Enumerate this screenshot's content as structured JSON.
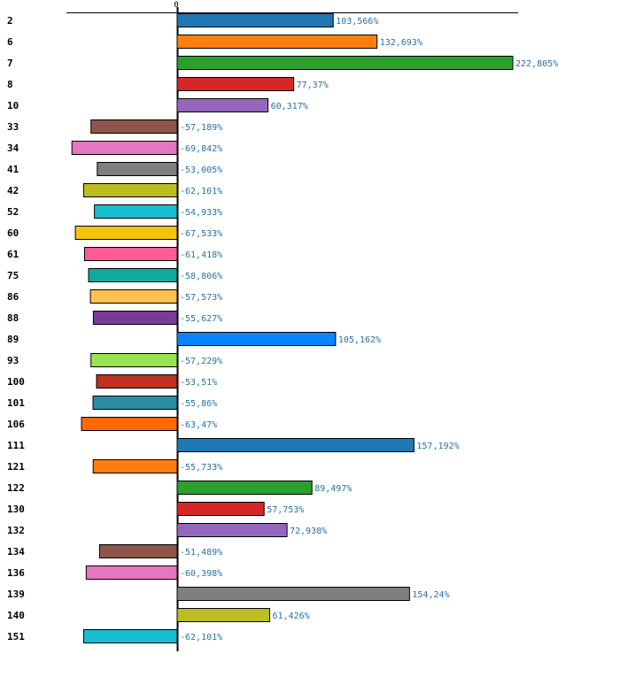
{
  "chart_data": {
    "type": "bar",
    "orientation": "horizontal",
    "x_tick_labels": [
      "0"
    ],
    "categories": [
      "2",
      "6",
      "7",
      "8",
      "10",
      "33",
      "34",
      "41",
      "42",
      "52",
      "60",
      "61",
      "75",
      "86",
      "88",
      "89",
      "93",
      "100",
      "101",
      "106",
      "111",
      "121",
      "122",
      "130",
      "132",
      "134",
      "136",
      "139",
      "140",
      "151"
    ],
    "values": [
      103.566,
      132.693,
      222.805,
      77.37,
      60.317,
      -57.189,
      -69.842,
      -53.005,
      -62.101,
      -54.933,
      -67.533,
      -61.418,
      -58.806,
      -57.573,
      -55.627,
      105.162,
      -57.229,
      -53.51,
      -55.86,
      -63.47,
      157.192,
      -55.733,
      89.497,
      57.753,
      72.938,
      -51.489,
      -60.398,
      154.24,
      61.426,
      -62.101
    ],
    "value_labels": [
      "103,566%",
      "132,693%",
      "222,805%",
      "77,37%",
      "60,317%",
      "-57,189%",
      "-69,842%",
      "-53,005%",
      "-62,101%",
      "-54,933%",
      "-67,533%",
      "-61,418%",
      "-58,806%",
      "-57,573%",
      "-55,627%",
      "105,162%",
      "-57,229%",
      "-53,51%",
      "-55,86%",
      "-63,47%",
      "157,192%",
      "-55,733%",
      "89,497%",
      "57,753%",
      "72,938%",
      "-51,489%",
      "-60,398%",
      "154,24%",
      "61,426%",
      "-62,101%"
    ],
    "colors": [
      "#1f77b4",
      "#ff7f0e",
      "#2ca02c",
      "#d62728",
      "#9467bd",
      "#8c564b",
      "#e377c2",
      "#7f7f7f",
      "#bcbd22",
      "#17becf",
      "#f5c211",
      "#ff5996",
      "#12aaa0",
      "#ffc04d",
      "#7a3a96",
      "#0a84ff",
      "#98e34f",
      "#c0311f",
      "#2c8ca4",
      "#ff6a00",
      "#1f77b4",
      "#ff7f0e",
      "#2ca02c",
      "#d62728",
      "#9467bd",
      "#8c564b",
      "#e377c2",
      "#7f7f7f",
      "#bcbd22",
      "#17becf"
    ],
    "xlim": [
      -73.2,
      226
    ],
    "title": "",
    "xlabel": "",
    "ylabel": ""
  }
}
